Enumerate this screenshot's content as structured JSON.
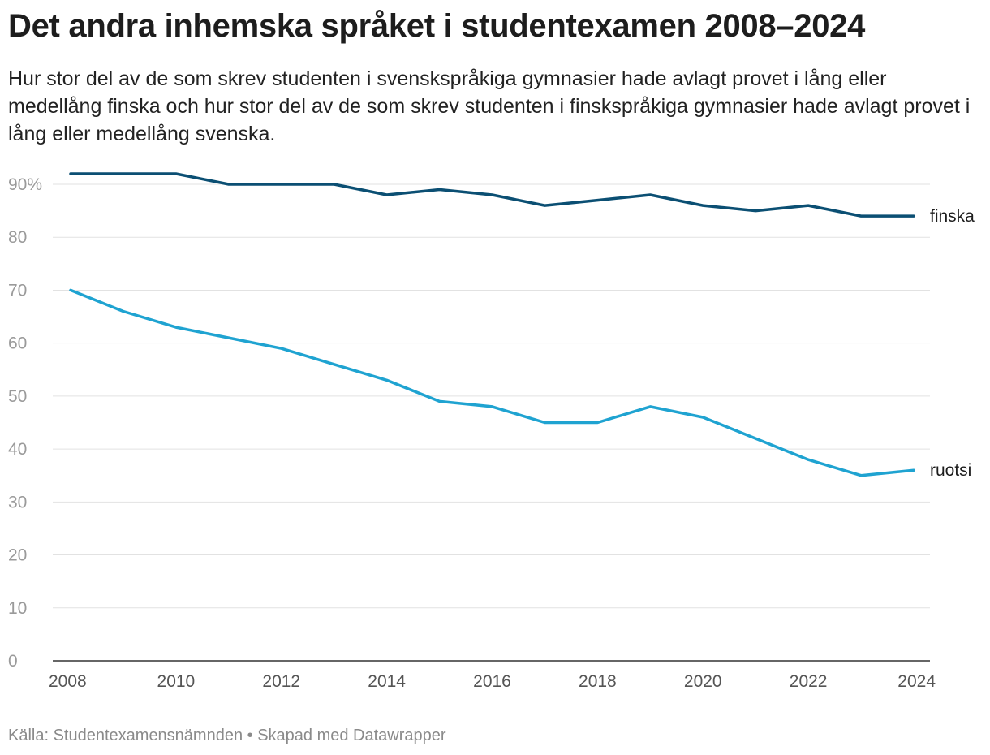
{
  "header": {
    "title": "Det andra inhemska språket i studentexamen 2008–2024",
    "subtitle": "Hur stor del av de som skrev studenten i svenskspråkiga gymnasier hade avlagt provet i lång eller medellång finska och hur stor del av de som skrev studenten i finskspråkiga gymnasier hade avlagt provet i lång eller medellång svenska."
  },
  "footer": {
    "source": "Källa: Studentexamensnämnden • Skapad med Datawrapper"
  },
  "chart_data": {
    "type": "line",
    "title": "Det andra inhemska språket i studentexamen 2008–2024",
    "xlabel": "",
    "ylabel": "",
    "x": [
      2008,
      2009,
      2010,
      2011,
      2012,
      2013,
      2014,
      2015,
      2016,
      2017,
      2018,
      2019,
      2020,
      2021,
      2022,
      2023,
      2024
    ],
    "x_ticks": [
      "2008",
      "2010",
      "2012",
      "2014",
      "2016",
      "2018",
      "2020",
      "2022",
      "2024"
    ],
    "y_ticks": [
      "0",
      "10",
      "20",
      "30",
      "40",
      "50",
      "60",
      "70",
      "80",
      "90%"
    ],
    "ylim": [
      0,
      90
    ],
    "grid": true,
    "legend": "direct labels at line ends",
    "series": [
      {
        "name": "finska",
        "color": "#0b4f73",
        "values": [
          92,
          92,
          92,
          90,
          90,
          90,
          88,
          89,
          88,
          86,
          87,
          88,
          86,
          85,
          86,
          84,
          84
        ]
      },
      {
        "name": "ruotsi",
        "color": "#1fa3d1",
        "values": [
          70,
          66,
          63,
          61,
          59,
          56,
          53,
          49,
          48,
          45,
          45,
          48,
          46,
          42,
          38,
          35,
          36
        ]
      }
    ]
  }
}
